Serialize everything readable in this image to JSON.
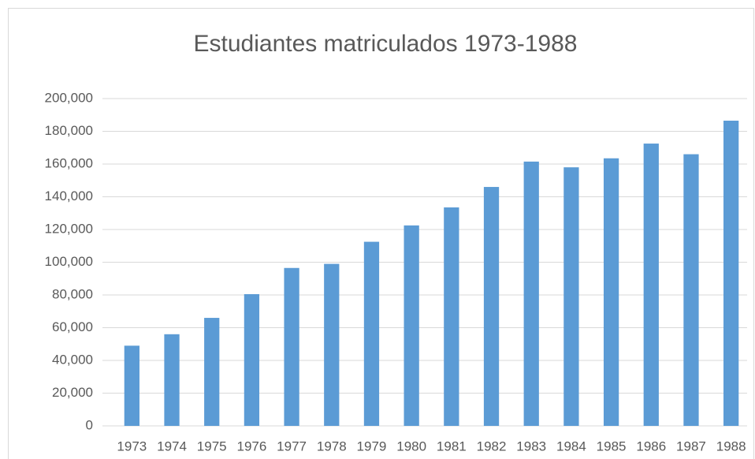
{
  "chart_data": {
    "type": "bar",
    "title": "Estudiantes matriculados 1973-1988",
    "categories": [
      "1973",
      "1974",
      "1975",
      "1976",
      "1977",
      "1978",
      "1979",
      "1980",
      "1981",
      "1982",
      "1983",
      "1984",
      "1985",
      "1986",
      "1987",
      "1988"
    ],
    "values": [
      49000,
      56000,
      66000,
      80500,
      96500,
      99000,
      112500,
      122500,
      133500,
      146000,
      161500,
      158000,
      163500,
      172500,
      166000,
      186500
    ],
    "color": "#5b9bd5",
    "ylim": [
      0,
      200000
    ],
    "yticks": [
      0,
      {
        "value": 20000,
        "label": "20,000"
      },
      {
        "value": 40000,
        "label": "40,000"
      },
      {
        "value": 60000,
        "label": "60,000"
      },
      {
        "value": 80000,
        "label": "80,000"
      },
      {
        "value": 100000,
        "label": "100,000"
      },
      {
        "value": 120000,
        "label": "120,000"
      },
      {
        "value": 140000,
        "label": "140,000"
      },
      {
        "value": 160000,
        "label": "160,000"
      },
      {
        "value": 180000,
        "label": "180,000"
      },
      {
        "value": 200000,
        "label": "200,000"
      }
    ],
    "grid": true
  }
}
